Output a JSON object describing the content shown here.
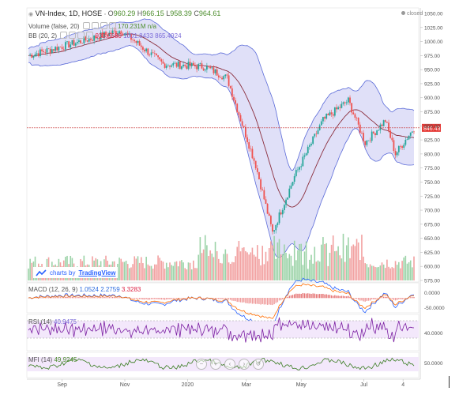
{
  "header": {
    "symbol": "VN-Index, 1D, HOSE",
    "ohlc": {
      "o_label": "O",
      "o": "960.29",
      "h_label": "H",
      "h": "966.15",
      "l_label": "L",
      "l": "958.39",
      "c_label": "C",
      "c": "964.61"
    },
    "status": "closed"
  },
  "indicators": {
    "volume": {
      "label": "Volume (false, 20)",
      "value1": "170.231M",
      "value2": "n/a"
    },
    "bb": {
      "label": "BB (20, 2)",
      "basis": "933.6680",
      "upper": "1001.8433",
      "lower": "865.4924"
    },
    "macd": {
      "label": "MACD (12, 26, 9)",
      "v1": "1.0524",
      "v2": "2.2759",
      "v3": "3.3283",
      "axis": "0.0000",
      "axis_neg": "-50.0000"
    },
    "rsi": {
      "label": "RSI (14)",
      "value": "40.9475",
      "axis": "40.0000"
    },
    "mfi": {
      "label": "MFI (14)",
      "value": "49.9245",
      "axis": "50.0000"
    }
  },
  "branding": {
    "prefix": "charts by",
    "name": "TradingView"
  },
  "price_axis": {
    "ticks": [
      "1050.00",
      "1025.00",
      "1000.00",
      "975.00",
      "950.00",
      "925.00",
      "900.00",
      "875.00",
      "850.00",
      "825.00",
      "800.00",
      "775.00",
      "750.00",
      "725.00",
      "700.00",
      "675.00",
      "650.00",
      "625.00",
      "600.00",
      "575.00"
    ],
    "last_price_label": "846.43"
  },
  "time_axis": {
    "ticks": [
      "Sep",
      "Nov",
      "2020",
      "Mar",
      "May",
      "Jul",
      "4"
    ]
  },
  "colors": {
    "up": "#26a69a",
    "down": "#ef5350",
    "bb_fill": "#d6d6f5",
    "bb_line": "#5b6bd8",
    "basis": "#8b2f3e",
    "macd": "#2962ff",
    "signal": "#ff6d00",
    "rsi": "#7b1fa2",
    "mfi": "#3a7d22",
    "pane_band": "#f3e8fb"
  },
  "chart_data": {
    "type": "candlestick",
    "title": "VN-Index, 1D, HOSE",
    "x_range": [
      "Aug 2019",
      "Jul 2020"
    ],
    "y_range": [
      575,
      1050
    ],
    "key_points": [
      {
        "x": "Aug 2019",
        "y": 975
      },
      {
        "x": "Nov 2019",
        "y": 1020
      },
      {
        "x": "Dec 2019",
        "y": 960
      },
      {
        "x": "Jan 2020",
        "y": 955
      },
      {
        "x": "Feb 2020",
        "y": 935
      },
      {
        "x": "Mar 2020",
        "y": 780
      },
      {
        "x": "Late Mar 2020",
        "y": 660
      },
      {
        "x": "Apr 2020",
        "y": 760
      },
      {
        "x": "May 2020",
        "y": 860
      },
      {
        "x": "Jun 2020",
        "y": 895
      },
      {
        "x": "Jun 2020",
        "y": 820
      },
      {
        "x": "Jul 2020",
        "y": 860
      },
      {
        "x": "Jul 2020",
        "y": 800
      },
      {
        "x": "Jul 2020",
        "y": 846.43
      }
    ],
    "last_price": 846.43,
    "ylabel": "",
    "xlabel": "",
    "grid": false
  }
}
